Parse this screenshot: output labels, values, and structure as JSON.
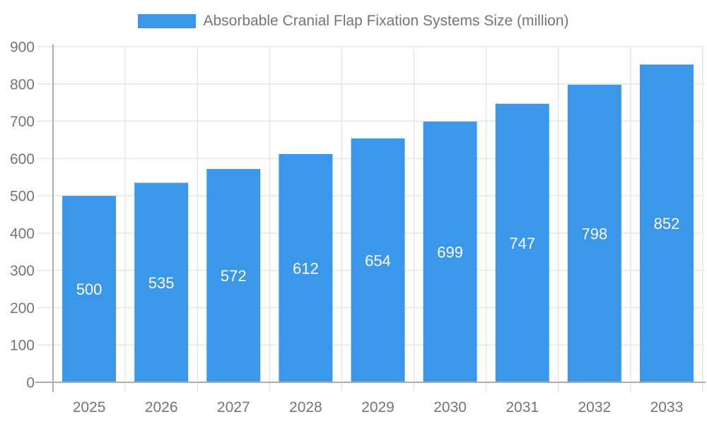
{
  "legend": {
    "label": "Absorbable Cranial Flap Fixation Systems Size (million)"
  },
  "colors": {
    "bar": "#3B97EA",
    "grid": "#E6E6E6",
    "axis": "#ADADAD",
    "tick_text": "#757575",
    "value_text": "#FFFFFF",
    "background": "#FFFFFF"
  },
  "chart_data": {
    "type": "bar",
    "title": "Absorbable Cranial Flap Fixation Systems Size (million)",
    "categories": [
      "2025",
      "2026",
      "2027",
      "2028",
      "2029",
      "2030",
      "2031",
      "2032",
      "2033"
    ],
    "values": [
      500,
      535,
      572,
      612,
      654,
      699,
      747,
      798,
      852
    ],
    "xlabel": "",
    "ylabel": "",
    "ylim": [
      0,
      900
    ],
    "yticks": [
      0,
      100,
      200,
      300,
      400,
      500,
      600,
      700,
      800,
      900
    ],
    "grid": true,
    "legend_position": "top-center",
    "value_label_position": "inside-middle"
  }
}
